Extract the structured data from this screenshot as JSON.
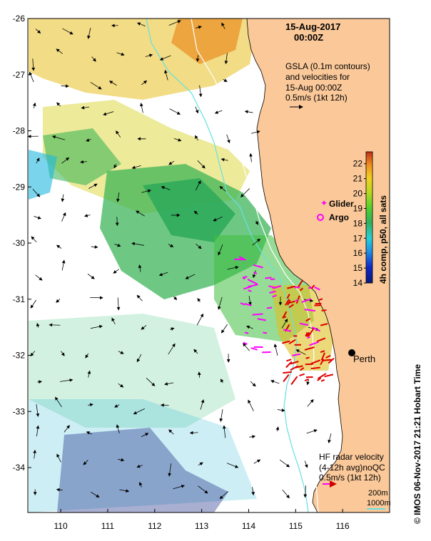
{
  "header": {
    "date": "15-Aug-2017",
    "time": "00:00Z"
  },
  "gsla_note": {
    "line1": "GSLA (0.1m contours)",
    "line2": "and velocities for",
    "line3": "15-Aug 00:00Z",
    "line4": "0.5m/s (1kt 12h)"
  },
  "colorbar": {
    "label": "4h comp, p50, all sats",
    "ticks": [
      "14",
      "15",
      "16",
      "17",
      "18",
      "19",
      "20",
      "21",
      "22"
    ],
    "min": 14,
    "max": 22.8
  },
  "legend": {
    "glider": "Glider",
    "argo": "Argo",
    "glider_color": "#ff00ff",
    "argo_color": "#ff00ff"
  },
  "city": {
    "name": "Perth"
  },
  "hf_radar": {
    "line1": "HF radar velocity",
    "line2": "(4-12h avg)noQC",
    "line3": "0.5m/s (1kt 12h)"
  },
  "depth_legend": {
    "contour_200": "200m",
    "contour_1000": "1000m",
    "contour_200_color": "#ffffff",
    "contour_1000_color": "#66e0e0"
  },
  "axes": {
    "lon_ticks": [
      "110",
      "111",
      "112",
      "113",
      "114",
      "115",
      "116"
    ],
    "lat_ticks": [
      "-26",
      "-27",
      "-28",
      "-29",
      "-30",
      "-31",
      "-32",
      "-33",
      "-34"
    ],
    "lon_range": [
      109.3,
      117.0
    ],
    "lat_range": [
      -34.8,
      -26.0
    ]
  },
  "credit": "© IMOS 06-Nov-2017 21:21 Hobart Time",
  "colors": {
    "land": "#fac899",
    "cold": "#081a7a",
    "warm": "#c8500a",
    "radar_arrow": "#e00000"
  }
}
